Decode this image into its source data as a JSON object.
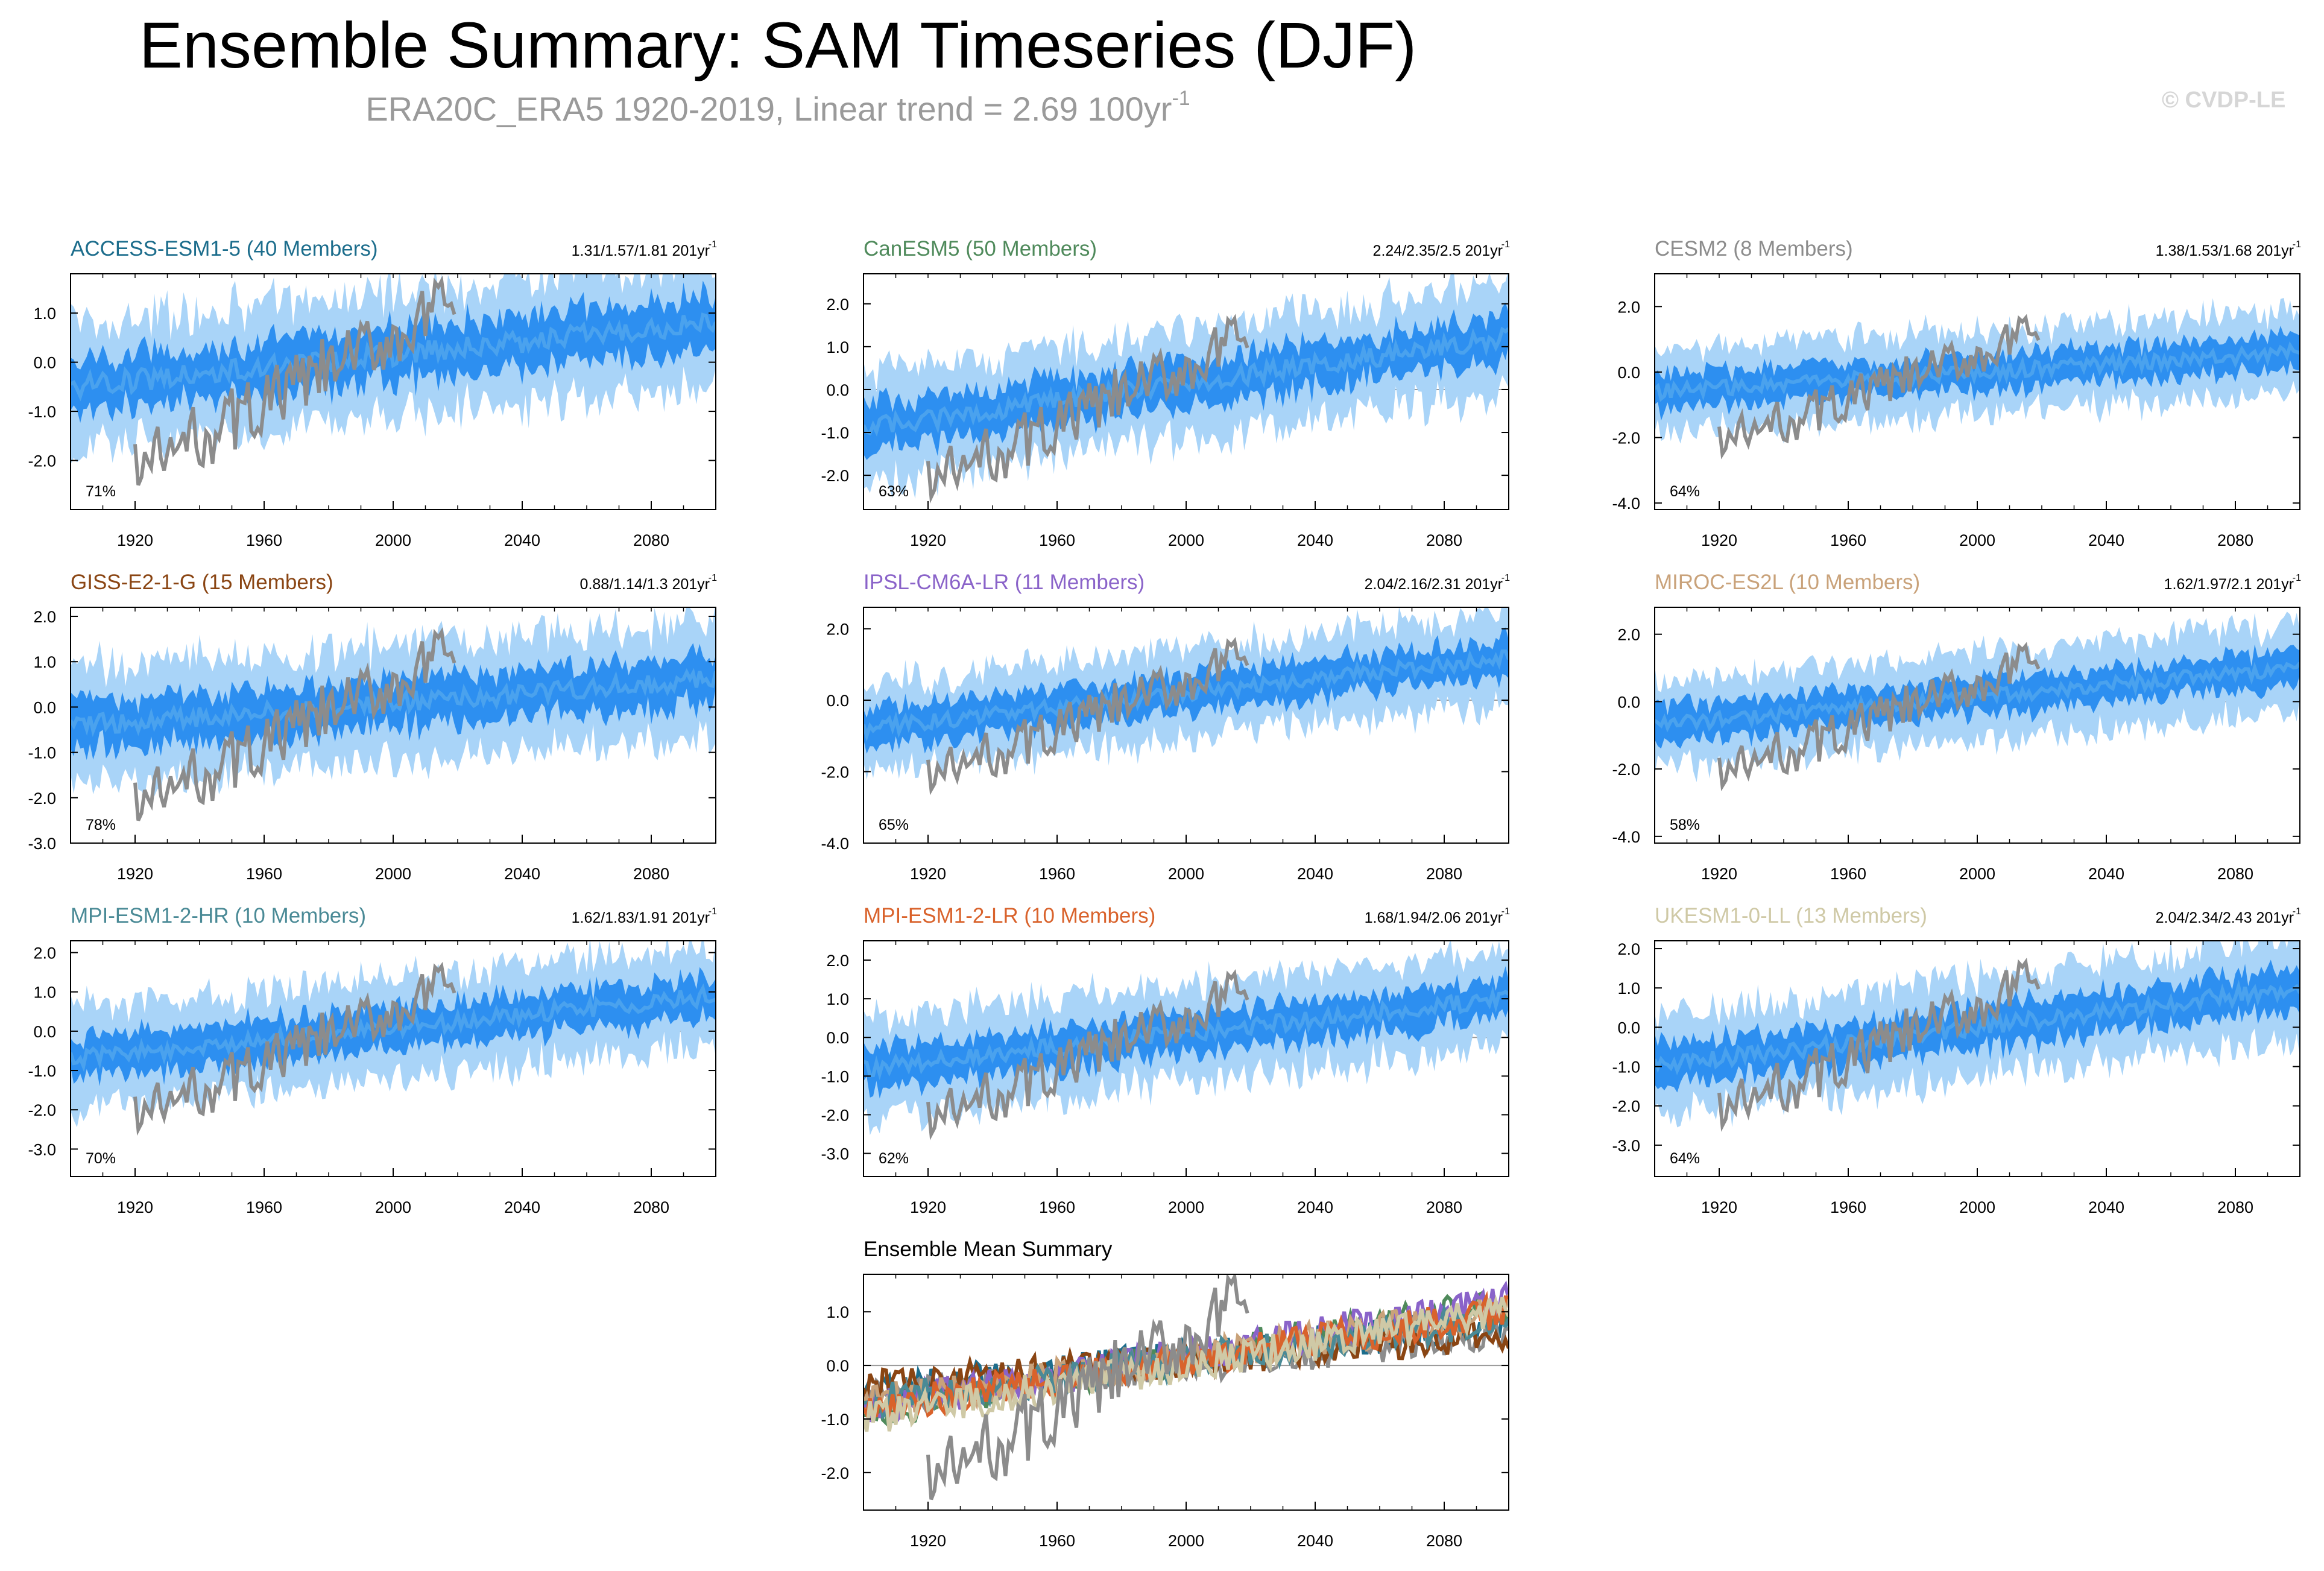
{
  "title": "Ensemble Summary: SAM Timeseries (DJF)",
  "subtitle": {
    "text": "ERA20C_ERA5 1920-2019, Linear trend = 2.69 100yr",
    "sup": "-1"
  },
  "copyright": "© CVDP-LE",
  "colors": {
    "spread_outer": "#a9d4f8",
    "spread_inner": "#2d8ff0",
    "ensemble_mean_line": "#4aa2ee",
    "observations": "#8c8c8c",
    "zero_line": "#9a9a9a"
  },
  "chart_data": [
    {
      "type": "line",
      "title": "ACCESS-ESM1-5 (40 Members)",
      "title_color": "#1c6d8c",
      "trend_label": "1.31/1.57/1.81 201yr",
      "trend_sup": "-1",
      "percent_label": "71%",
      "xlim": [
        1900,
        2100
      ],
      "ylim": [
        -3.0,
        1.8
      ],
      "yticks": [
        -2.0,
        -1.0,
        0.0,
        1.0
      ],
      "xticks": [
        1920,
        1960,
        2000,
        2040,
        2080
      ],
      "ytick_labels": [
        "-2.0",
        "-1.0",
        "0.0",
        "1.0"
      ],
      "xtick_labels": [
        "1920",
        "1960",
        "2000",
        "2040",
        "2080"
      ],
      "series": [
        {
          "name": "ensemble spread (outer)",
          "start": -0.5,
          "end": 0.8
        },
        {
          "name": "ensemble spread (inner)"
        },
        {
          "name": "ensemble mean"
        },
        {
          "name": "ERA20C_ERA5 observations",
          "years": [
            1920,
            2019
          ]
        }
      ]
    },
    {
      "type": "line",
      "title": "CanESM5 (50 Members)",
      "title_color": "#4f8a5b",
      "trend_label": "2.24/2.35/2.5 201yr",
      "trend_sup": "-1",
      "percent_label": "63%",
      "xlim": [
        1900,
        2100
      ],
      "ylim": [
        -2.8,
        2.7
      ],
      "yticks": [
        -2.0,
        -1.0,
        0.0,
        1.0,
        2.0
      ],
      "xticks": [
        1920,
        1960,
        2000,
        2040,
        2080
      ],
      "ytick_labels": [
        "-2.0",
        "-1.0",
        "0.0",
        "1.0",
        "2.0"
      ],
      "xtick_labels": [
        "1920",
        "1960",
        "2000",
        "2040",
        "2080"
      ],
      "series": [
        {
          "name": "ensemble spread (outer)",
          "start": -0.9,
          "end": 1.2
        },
        {
          "name": "ensemble spread (inner)"
        },
        {
          "name": "ensemble mean"
        },
        {
          "name": "ERA20C_ERA5 observations",
          "years": [
            1920,
            2019
          ]
        }
      ]
    },
    {
      "type": "line",
      "title": "CESM2 (8 Members)",
      "title_color": "#8c8c8c",
      "trend_label": "1.38/1.53/1.68 201yr",
      "trend_sup": "-1",
      "percent_label": "64%",
      "xlim": [
        1900,
        2100
      ],
      "ylim": [
        -4.2,
        3.0
      ],
      "yticks": [
        -4.0,
        -2.0,
        0.0,
        2.0
      ],
      "xticks": [
        1920,
        1960,
        2000,
        2040,
        2080
      ],
      "ytick_labels": [
        "-4.0",
        "-2.0",
        "0.0",
        "2.0"
      ],
      "xtick_labels": [
        "1920",
        "1960",
        "2000",
        "2040",
        "2080"
      ],
      "series": [
        {
          "name": "ensemble spread (outer)",
          "start": -0.6,
          "end": 0.6
        },
        {
          "name": "ensemble spread (inner)"
        },
        {
          "name": "ensemble mean"
        },
        {
          "name": "ERA20C_ERA5 observations",
          "years": [
            1920,
            2019
          ]
        }
      ]
    },
    {
      "type": "line",
      "title": "GISS-E2-1-G (15 Members)",
      "title_color": "#8a4513",
      "trend_label": "0.88/1.14/1.3 201yr",
      "trend_sup": "-1",
      "percent_label": "78%",
      "xlim": [
        1900,
        2100
      ],
      "ylim": [
        -3.0,
        2.2
      ],
      "yticks": [
        -3.0,
        -2.0,
        -1.0,
        0.0,
        1.0,
        2.0
      ],
      "xticks": [
        1920,
        1960,
        2000,
        2040,
        2080
      ],
      "ytick_labels": [
        "-3.0",
        "-2.0",
        "-1.0",
        "0.0",
        "1.0",
        "2.0"
      ],
      "xtick_labels": [
        "1920",
        "1960",
        "2000",
        "2040",
        "2080"
      ],
      "series": [
        {
          "name": "ensemble spread (outer)",
          "start": -0.4,
          "end": 0.6
        },
        {
          "name": "ensemble spread (inner)"
        },
        {
          "name": "ensemble mean"
        },
        {
          "name": "ERA20C_ERA5 observations",
          "years": [
            1920,
            2019
          ]
        }
      ]
    },
    {
      "type": "line",
      "title": "IPSL-CM6A-LR (11 Members)",
      "title_color": "#8a63c9",
      "trend_label": "2.04/2.16/2.31 201yr",
      "trend_sup": "-1",
      "percent_label": "65%",
      "xlim": [
        1900,
        2100
      ],
      "ylim": [
        -4.0,
        2.6
      ],
      "yticks": [
        -4.0,
        -2.0,
        0.0,
        2.0
      ],
      "xticks": [
        1920,
        1960,
        2000,
        2040,
        2080
      ],
      "ytick_labels": [
        "-4.0",
        "-2.0",
        "0.0",
        "2.0"
      ],
      "xtick_labels": [
        "1920",
        "1960",
        "2000",
        "2040",
        "2080"
      ],
      "series": [
        {
          "name": "ensemble spread (outer)",
          "start": -0.8,
          "end": 1.2
        },
        {
          "name": "ensemble spread (inner)"
        },
        {
          "name": "ensemble mean"
        },
        {
          "name": "ERA20C_ERA5 observations",
          "years": [
            1920,
            2019
          ]
        }
      ]
    },
    {
      "type": "line",
      "title": "MIROC-ES2L (10 Members)",
      "title_color": "#c9a27a",
      "trend_label": "1.62/1.97/2.1 201yr",
      "trend_sup": "-1",
      "percent_label": "58%",
      "xlim": [
        1900,
        2100
      ],
      "ylim": [
        -4.2,
        2.8
      ],
      "yticks": [
        -4.0,
        -2.0,
        0.0,
        2.0
      ],
      "xticks": [
        1920,
        1960,
        2000,
        2040,
        2080
      ],
      "ytick_labels": [
        "-4.0",
        "-2.0",
        "0.0",
        "2.0"
      ],
      "xtick_labels": [
        "1920",
        "1960",
        "2000",
        "2040",
        "2080"
      ],
      "series": [
        {
          "name": "ensemble spread (outer)",
          "start": -0.7,
          "end": 1.0
        },
        {
          "name": "ensemble spread (inner)"
        },
        {
          "name": "ensemble mean"
        },
        {
          "name": "ERA20C_ERA5 observations",
          "years": [
            1920,
            2019
          ]
        }
      ]
    },
    {
      "type": "line",
      "title": "MPI-ESM1-2-HR (10 Members)",
      "title_color": "#4a8a96",
      "trend_label": "1.62/1.83/1.91 201yr",
      "trend_sup": "-1",
      "percent_label": "70%",
      "xlim": [
        1900,
        2100
      ],
      "ylim": [
        -3.7,
        2.3
      ],
      "yticks": [
        -3.0,
        -2.0,
        -1.0,
        0.0,
        1.0,
        2.0
      ],
      "xticks": [
        1920,
        1960,
        2000,
        2040,
        2080
      ],
      "ytick_labels": [
        "-3.0",
        "-2.0",
        "-1.0",
        "0.0",
        "1.0",
        "2.0"
      ],
      "xtick_labels": [
        "1920",
        "1960",
        "2000",
        "2040",
        "2080"
      ],
      "series": [
        {
          "name": "ensemble spread (outer)",
          "start": -0.7,
          "end": 0.9
        },
        {
          "name": "ensemble spread (inner)"
        },
        {
          "name": "ensemble mean"
        },
        {
          "name": "ERA20C_ERA5 observations",
          "years": [
            1920,
            2019
          ]
        }
      ]
    },
    {
      "type": "line",
      "title": "MPI-ESM1-2-LR (10 Members)",
      "title_color": "#d9622b",
      "trend_label": "1.68/1.94/2.06 201yr",
      "trend_sup": "-1",
      "percent_label": "62%",
      "xlim": [
        1900,
        2100
      ],
      "ylim": [
        -3.6,
        2.5
      ],
      "yticks": [
        -3.0,
        -2.0,
        -1.0,
        0.0,
        1.0,
        2.0
      ],
      "xticks": [
        1920,
        1960,
        2000,
        2040,
        2080
      ],
      "ytick_labels": [
        "-3.0",
        "-2.0",
        "-1.0",
        "0.0",
        "1.0",
        "2.0"
      ],
      "xtick_labels": [
        "1920",
        "1960",
        "2000",
        "2040",
        "2080"
      ],
      "series": [
        {
          "name": "ensemble spread (outer)",
          "start": -0.8,
          "end": 1.0
        },
        {
          "name": "ensemble spread (inner)"
        },
        {
          "name": "ensemble mean"
        },
        {
          "name": "ERA20C_ERA5 observations",
          "years": [
            1920,
            2019
          ]
        }
      ]
    },
    {
      "type": "line",
      "title": "UKESM1-0-LL (13 Members)",
      "title_color": "#cfc9a6",
      "trend_label": "2.04/2.34/2.43 201yr",
      "trend_sup": "-1",
      "percent_label": "64%",
      "xlim": [
        1900,
        2100
      ],
      "ylim": [
        -3.8,
        2.2
      ],
      "yticks": [
        -3.0,
        -2.0,
        -1.0,
        0.0,
        1.0,
        2.0
      ],
      "xticks": [
        1920,
        1960,
        2000,
        2040,
        2080
      ],
      "ytick_labels": [
        "-3.0",
        "-2.0",
        "-1.0",
        "0.0",
        "1.0",
        "2.0"
      ],
      "xtick_labels": [
        "1920",
        "1960",
        "2000",
        "2040",
        "2080"
      ],
      "series": [
        {
          "name": "ensemble spread (outer)",
          "start": -1.0,
          "end": 1.0
        },
        {
          "name": "ensemble spread (inner)"
        },
        {
          "name": "ensemble mean"
        },
        {
          "name": "ERA20C_ERA5 observations",
          "years": [
            1920,
            2019
          ]
        }
      ]
    },
    {
      "type": "line",
      "title": "Ensemble Mean Summary",
      "title_color": "#000000",
      "percent_label": "",
      "xlim": [
        1900,
        2100
      ],
      "ylim": [
        -2.7,
        1.7
      ],
      "yticks": [
        -2.0,
        -1.0,
        0.0,
        1.0
      ],
      "xticks": [
        1920,
        1960,
        2000,
        2040,
        2080
      ],
      "ytick_labels": [
        "-2.0",
        "-1.0",
        "0.0",
        "1.0"
      ],
      "xtick_labels": [
        "1920",
        "1960",
        "2000",
        "2040",
        "2080"
      ],
      "series": [
        {
          "name": "ACCESS-ESM1-5",
          "color": "#1c6d8c",
          "start": -0.5,
          "end": 0.8
        },
        {
          "name": "CanESM5",
          "color": "#4f8a5b",
          "start": -0.9,
          "end": 1.2
        },
        {
          "name": "CESM2",
          "color": "#8c8c8c",
          "start": -0.6,
          "end": 0.6
        },
        {
          "name": "GISS-E2-1-G",
          "color": "#8a4513",
          "start": -0.4,
          "end": 0.6
        },
        {
          "name": "IPSL-CM6A-LR",
          "color": "#8a63c9",
          "start": -0.8,
          "end": 1.2
        },
        {
          "name": "MIROC-ES2L",
          "color": "#c9a27a",
          "start": -0.7,
          "end": 1.0
        },
        {
          "name": "MPI-ESM1-2-HR",
          "color": "#4a8a96",
          "start": -0.7,
          "end": 0.9
        },
        {
          "name": "MPI-ESM1-2-LR",
          "color": "#d9622b",
          "start": -0.8,
          "end": 1.0
        },
        {
          "name": "UKESM1-0-LL",
          "color": "#cfc9a6",
          "start": -1.0,
          "end": 1.0
        },
        {
          "name": "ERA20C_ERA5 observations",
          "color": "#8c8c8c",
          "years": [
            1920,
            2019
          ]
        }
      ]
    }
  ]
}
